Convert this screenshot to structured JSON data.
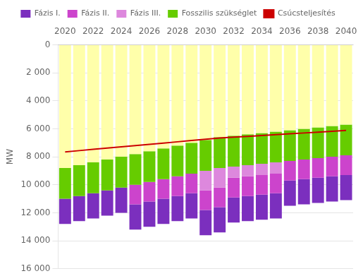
{
  "chart_data": {
    "type": "bar",
    "stacked": true,
    "y_label": "MW",
    "x": [
      2020,
      2021,
      2022,
      2023,
      2024,
      2025,
      2026,
      2027,
      2028,
      2029,
      2030,
      2031,
      2032,
      2033,
      2034,
      2035,
      2036,
      2037,
      2038,
      2039,
      2040
    ],
    "xlim": [
      2019.5,
      2040.5
    ],
    "xticks": [
      2020,
      2022,
      2024,
      2026,
      2028,
      2030,
      2032,
      2034,
      2036,
      2038,
      2040
    ],
    "ylim": [
      16000,
      0
    ],
    "yticks": [
      0,
      {
        "value": 2000,
        "label": "2 000"
      },
      {
        "value": 4000,
        "label": "4 000"
      },
      {
        "value": 6000,
        "label": "6 000"
      },
      {
        "value": 8000,
        "label": "8 000"
      },
      {
        "value": 10000,
        "label": "10 000"
      },
      {
        "value": 12000,
        "label": "12 000"
      },
      {
        "value": 14000,
        "label": "14 000"
      },
      {
        "value": 16000,
        "label": "16 000"
      }
    ],
    "grid": "y",
    "legend": "top",
    "series": [
      {
        "color": "#ffffaa",
        "values": [
          8800,
          8600,
          8400,
          8200,
          8000,
          7800,
          7600,
          7400,
          7200,
          7000,
          6800,
          6600,
          6500,
          6400,
          6300,
          6200,
          6100,
          6000,
          5900,
          5800,
          5700
        ]
      },
      {
        "name": "Fosszilis szükséglet",
        "color": "#66cc00",
        "values": [
          2200,
          2200,
          2200,
          2200,
          2200,
          2200,
          2200,
          2200,
          2200,
          2200,
          2200,
          2200,
          2200,
          2200,
          2200,
          2200,
          2200,
          2200,
          2200,
          2200,
          2200
        ]
      },
      {
        "name": "Fázis III.",
        "color": "#dd88dd",
        "values": [
          0,
          0,
          0,
          0,
          0,
          0,
          0,
          0,
          0,
          0,
          1400,
          1400,
          800,
          800,
          800,
          800,
          0,
          0,
          0,
          0,
          0
        ]
      },
      {
        "name": "Fázis II.",
        "color": "#cc44cc",
        "values": [
          0,
          0,
          0,
          0,
          0,
          1400,
          1400,
          1400,
          1400,
          1400,
          1400,
          1400,
          1400,
          1400,
          1400,
          1400,
          1400,
          1400,
          1400,
          1400,
          1400
        ]
      },
      {
        "name": "Fázis I.",
        "color": "#7b2fbe",
        "values": [
          1800,
          1800,
          1800,
          1800,
          1800,
          1800,
          1800,
          1800,
          1800,
          1800,
          1800,
          1800,
          1800,
          1800,
          1800,
          1800,
          1800,
          1800,
          1800,
          1800,
          1800
        ]
      },
      {
        "name": "Csúcsteljesítés",
        "type": "line",
        "color": "#cc0000",
        "values": [
          7650,
          7560,
          7470,
          7380,
          7290,
          7200,
          7110,
          7020,
          6930,
          6840,
          6750,
          6660,
          6600,
          6540,
          6480,
          6420,
          6360,
          6300,
          6240,
          6180,
          6120
        ]
      }
    ]
  }
}
